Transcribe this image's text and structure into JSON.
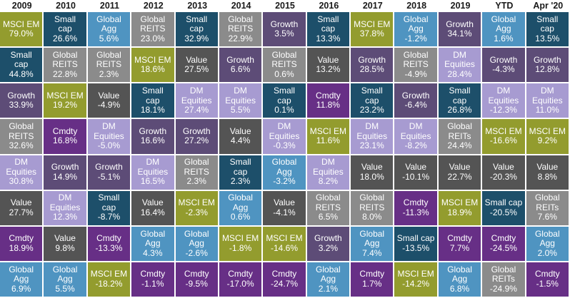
{
  "colors": {
    "MSCI EM": "#939c2e",
    "Small cap": "#1d4f6a",
    "Global Agg": "#4f94c1",
    "Global REITS": "#8b8b8b",
    "Growth": "#5d4c77",
    "Value": "#545454",
    "DM Equities": "#a79bd1",
    "Cmdty": "#672f86"
  },
  "chart_data": {
    "type": "table",
    "columns": [
      "2009",
      "2010",
      "2011",
      "2012",
      "2013",
      "2014",
      "2015",
      "2016",
      "2017",
      "2018",
      "2019",
      "YTD",
      "Apr '20"
    ],
    "cells": [
      [
        {
          "asset": "MSCI EM",
          "label": "MSCI EM",
          "value": "79.0%"
        },
        {
          "asset": "Small cap",
          "label": "Small\ncap",
          "value": "44.8%"
        },
        {
          "asset": "Growth",
          "label": "Growth",
          "value": "33.9%"
        },
        {
          "asset": "Global REITS",
          "label": "Global\nREITS",
          "value": "32.6%"
        },
        {
          "asset": "DM Equities",
          "label": "DM\nEquities",
          "value": "30.8%"
        },
        {
          "asset": "Value",
          "label": "Value",
          "value": "27.7%"
        },
        {
          "asset": "Cmdty",
          "label": "Cmdty",
          "value": "18.9%"
        },
        {
          "asset": "Global Agg",
          "label": "Global\nAgg",
          "value": "6.9%"
        }
      ],
      [
        {
          "asset": "Small cap",
          "label": "Small\ncap",
          "value": "26.6%"
        },
        {
          "asset": "Global REITS",
          "label": "Global\nREITS",
          "value": "22.8%"
        },
        {
          "asset": "MSCI EM",
          "label": "MSCI EM",
          "value": "19.2%"
        },
        {
          "asset": "Cmdty",
          "label": "Cmdty",
          "value": "16.8%"
        },
        {
          "asset": "Growth",
          "label": "Growth",
          "value": "14.9%"
        },
        {
          "asset": "DM Equities",
          "label": "DM\nEquities",
          "value": "12.3%"
        },
        {
          "asset": "Value",
          "label": "Value",
          "value": "9.8%"
        },
        {
          "asset": "Global Agg",
          "label": "Global\nAgg",
          "value": "5.5%"
        }
      ],
      [
        {
          "asset": "Global Agg",
          "label": "Global\nAgg",
          "value": "5.6%"
        },
        {
          "asset": "Global REITS",
          "label": "Global\nREITS",
          "value": "2.3%"
        },
        {
          "asset": "Value",
          "label": "Value",
          "value": "-4.9%"
        },
        {
          "asset": "DM Equities",
          "label": "DM\nEquities",
          "value": "-5.0%"
        },
        {
          "asset": "Growth",
          "label": "Growth",
          "value": "-5.1%"
        },
        {
          "asset": "Small cap",
          "label": "Small\ncap",
          "value": "-8.7%"
        },
        {
          "asset": "Cmdty",
          "label": "Cmdty",
          "value": "-13.3%"
        },
        {
          "asset": "MSCI EM",
          "label": "MSCI EM",
          "value": "-18.2%"
        }
      ],
      [
        {
          "asset": "Global REITS",
          "label": "Global\nREITS",
          "value": "23.0%"
        },
        {
          "asset": "MSCI EM",
          "label": "MSCI EM",
          "value": "18.6%"
        },
        {
          "asset": "Small cap",
          "label": "Small\ncap",
          "value": "18.1%"
        },
        {
          "asset": "Growth",
          "label": "Growth",
          "value": "16.6%"
        },
        {
          "asset": "DM Equities",
          "label": "DM\nEquities",
          "value": "16.5%"
        },
        {
          "asset": "Value",
          "label": "Value",
          "value": "16.4%"
        },
        {
          "asset": "Global Agg",
          "label": "Global\nAgg",
          "value": "4.3%"
        },
        {
          "asset": "Cmdty",
          "label": "Cmdty",
          "value": "-1.1%"
        }
      ],
      [
        {
          "asset": "Small cap",
          "label": "Small\ncap",
          "value": "32.9%"
        },
        {
          "asset": "Value",
          "label": "Value",
          "value": "27.5%"
        },
        {
          "asset": "DM Equities",
          "label": "DM\nEquities",
          "value": "27.4%"
        },
        {
          "asset": "Growth",
          "label": "Growth",
          "value": "27.2%"
        },
        {
          "asset": "Global REITS",
          "label": "Global\nREITS",
          "value": "2.3%"
        },
        {
          "asset": "MSCI EM",
          "label": "MSCI EM",
          "value": "-2.3%"
        },
        {
          "asset": "Global Agg",
          "label": "Global\nAgg",
          "value": "-2.6%"
        },
        {
          "asset": "Cmdty",
          "label": "Cmdty",
          "value": "-9.5%"
        }
      ],
      [
        {
          "asset": "Global REITS",
          "label": "Global\nREITS",
          "value": "22.9%"
        },
        {
          "asset": "Growth",
          "label": "Growth",
          "value": "6.6%"
        },
        {
          "asset": "DM Equities",
          "label": "DM\nEquities",
          "value": "5.5%"
        },
        {
          "asset": "Value",
          "label": "Value",
          "value": "4.4%"
        },
        {
          "asset": "Small cap",
          "label": "Small\ncap",
          "value": "2.3%"
        },
        {
          "asset": "Global Agg",
          "label": "Global\nAgg",
          "value": "0.6%"
        },
        {
          "asset": "MSCI EM",
          "label": "MSCI EM",
          "value": "-1.8%"
        },
        {
          "asset": "Cmdty",
          "label": "Cmdty",
          "value": "-17.0%"
        }
      ],
      [
        {
          "asset": "Growth",
          "label": "Growth",
          "value": "3.5%"
        },
        {
          "asset": "Global REITS",
          "label": "Global\nREITS",
          "value": "0.6%"
        },
        {
          "asset": "Small cap",
          "label": "Small\ncap",
          "value": "0.1%"
        },
        {
          "asset": "DM Equities",
          "label": "DM\nEquities",
          "value": "-0.3%"
        },
        {
          "asset": "Global Agg",
          "label": "Global\nAgg",
          "value": "-3.2%"
        },
        {
          "asset": "Value",
          "label": "Value",
          "value": "-4.1%"
        },
        {
          "asset": "MSCI EM",
          "label": "MSCI EM",
          "value": "-14.6%"
        },
        {
          "asset": "Cmdty",
          "label": "Cmdty",
          "value": "-24.7%"
        }
      ],
      [
        {
          "asset": "Small cap",
          "label": "Small\ncap",
          "value": "13.3%"
        },
        {
          "asset": "Value",
          "label": "Value",
          "value": "13.2%"
        },
        {
          "asset": "Cmdty",
          "label": "Cmdty",
          "value": "11.8%"
        },
        {
          "asset": "MSCI EM",
          "label": "MSCI EM",
          "value": "11.6%"
        },
        {
          "asset": "DM Equities",
          "label": "DM\nEquities",
          "value": "8.2%"
        },
        {
          "asset": "Global REITS",
          "label": "Global\nREITS",
          "value": "6.5%"
        },
        {
          "asset": "Growth",
          "label": "Growth",
          "value": "3.2%"
        },
        {
          "asset": "Global Agg",
          "label": "Global\nAgg",
          "value": "2.1%"
        }
      ],
      [
        {
          "asset": "MSCI EM",
          "label": "MSCI EM",
          "value": "37.8%"
        },
        {
          "asset": "Growth",
          "label": "Growth",
          "value": "28.5%"
        },
        {
          "asset": "Small cap",
          "label": "Small\ncap",
          "value": "23.2%"
        },
        {
          "asset": "DM Equities",
          "label": "DM\nEquities",
          "value": "23.1%"
        },
        {
          "asset": "Value",
          "label": "Value",
          "value": "18.0%"
        },
        {
          "asset": "Global REITS",
          "label": "Global\nREITS",
          "value": "8.0%"
        },
        {
          "asset": "Global Agg",
          "label": "Global\nAgg",
          "value": "7.4%"
        },
        {
          "asset": "Cmdty",
          "label": "Cmdty",
          "value": "1.7%"
        }
      ],
      [
        {
          "asset": "Global Agg",
          "label": "Global\nAgg",
          "value": "-1.2%"
        },
        {
          "asset": "Global REITS",
          "label": "Global\nREITS",
          "value": "-4.9%"
        },
        {
          "asset": "Growth",
          "label": "Growth",
          "value": "-6.4%"
        },
        {
          "asset": "DM Equities",
          "label": "DM\nEquities",
          "value": "-8.2%"
        },
        {
          "asset": "Value",
          "label": "Value",
          "value": "-10.1%"
        },
        {
          "asset": "Cmdty",
          "label": "Cmdty",
          "value": "-11.3%"
        },
        {
          "asset": "Small cap",
          "label": "Small cap",
          "value": "-13.5%"
        },
        {
          "asset": "MSCI EM",
          "label": "MSCI EM",
          "value": "-14.2%"
        }
      ],
      [
        {
          "asset": "Growth",
          "label": "Growth",
          "value": "34.1%"
        },
        {
          "asset": "DM Equities",
          "label": "DM\nEquities",
          "value": "28.4%"
        },
        {
          "asset": "Small cap",
          "label": "Small\ncap",
          "value": "26.8%"
        },
        {
          "asset": "Global REITS",
          "label": "Global\nREITs",
          "value": "24.4%"
        },
        {
          "asset": "Value",
          "label": "Value",
          "value": "22.7%"
        },
        {
          "asset": "MSCI EM",
          "label": "MSCI EM",
          "value": "18.9%"
        },
        {
          "asset": "Cmdty",
          "label": "Cmdty",
          "value": "7.7%"
        },
        {
          "asset": "Global Agg",
          "label": "Global\nAgg",
          "value": "6.8%"
        }
      ],
      [
        {
          "asset": "Global Agg",
          "label": "Global\nAgg",
          "value": "1.6%"
        },
        {
          "asset": "Growth",
          "label": "Growth",
          "value": "-4.3%"
        },
        {
          "asset": "DM Equities",
          "label": "DM\nEquities",
          "value": "-12.3%"
        },
        {
          "asset": "MSCI EM",
          "label": "MSCI EM",
          "value": "-16.6%"
        },
        {
          "asset": "Value",
          "label": "Value",
          "value": "-20.3%"
        },
        {
          "asset": "Small cap",
          "label": "Small cap",
          "value": "-20.5%"
        },
        {
          "asset": "Cmdty",
          "label": "Cmdty",
          "value": "-24.5%"
        },
        {
          "asset": "Global REITS",
          "label": "Global\nREITs",
          "value": "-24.9%"
        }
      ],
      [
        {
          "asset": "Small cap",
          "label": "Small\ncap",
          "value": "13.5%"
        },
        {
          "asset": "Growth",
          "label": "Growth",
          "value": "12.8%"
        },
        {
          "asset": "DM Equities",
          "label": "DM\nEquities",
          "value": "11.0%"
        },
        {
          "asset": "MSCI EM",
          "label": "MSCI EM",
          "value": "9.2%"
        },
        {
          "asset": "Value",
          "label": "Value",
          "value": "8.8%"
        },
        {
          "asset": "Global REITS",
          "label": "Global\nREITs",
          "value": "7.6%"
        },
        {
          "asset": "Global Agg",
          "label": "Global\nAgg",
          "value": "2.0%"
        },
        {
          "asset": "Cmdty",
          "label": "Cmdty",
          "value": "-1.5%"
        }
      ]
    ]
  }
}
